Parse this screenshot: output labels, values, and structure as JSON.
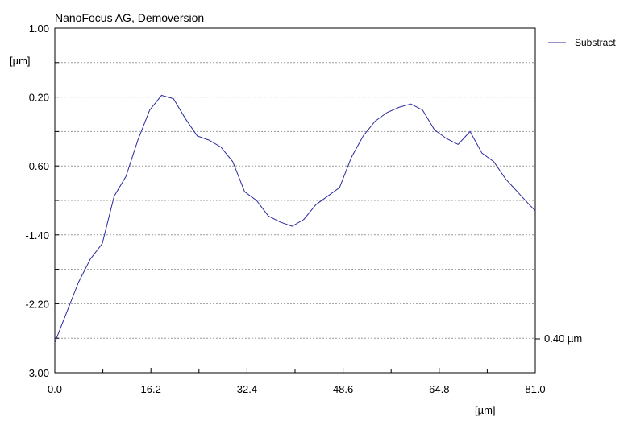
{
  "chart_data": {
    "type": "line",
    "title": "NanoFocus AG, Demoversion",
    "xlabel": "[µm]",
    "ylabel": "[µm]",
    "xlim": [
      0.0,
      81.0
    ],
    "ylim": [
      -3.0,
      1.0
    ],
    "x_ticks": [
      "0.0",
      "16.2",
      "32.4",
      "48.6",
      "64.8",
      "81.0"
    ],
    "y_ticks": [
      "1.00",
      "0.20",
      "-0.60",
      "-1.40",
      "-2.20",
      "-3.00"
    ],
    "grid": true,
    "legend_position": "top-right",
    "scale_label": "0.40 µm",
    "line_color": "#2b2b9e",
    "series": [
      {
        "name": "Substract",
        "x": [
          0,
          2,
          4,
          6,
          8,
          10,
          12,
          14,
          16,
          18,
          20,
          22,
          24,
          26,
          28,
          30,
          32,
          34,
          36,
          38,
          40,
          42,
          44,
          46,
          48,
          50,
          52,
          54,
          56,
          58,
          60,
          62,
          64,
          66,
          68,
          70,
          72,
          74,
          76,
          78,
          80,
          81
        ],
        "y": [
          -2.65,
          -2.3,
          -1.95,
          -1.68,
          -1.5,
          -0.95,
          -0.72,
          -0.3,
          0.05,
          0.22,
          0.18,
          -0.05,
          -0.25,
          -0.3,
          -0.38,
          -0.55,
          -0.9,
          -1.0,
          -1.18,
          -1.25,
          -1.3,
          -1.22,
          -1.05,
          -0.95,
          -0.85,
          -0.5,
          -0.25,
          -0.08,
          0.02,
          0.08,
          0.12,
          0.05,
          -0.18,
          -0.28,
          -0.35,
          -0.2,
          -0.45,
          -0.55,
          -0.75,
          -0.9,
          -1.05,
          -1.12
        ]
      }
    ]
  }
}
